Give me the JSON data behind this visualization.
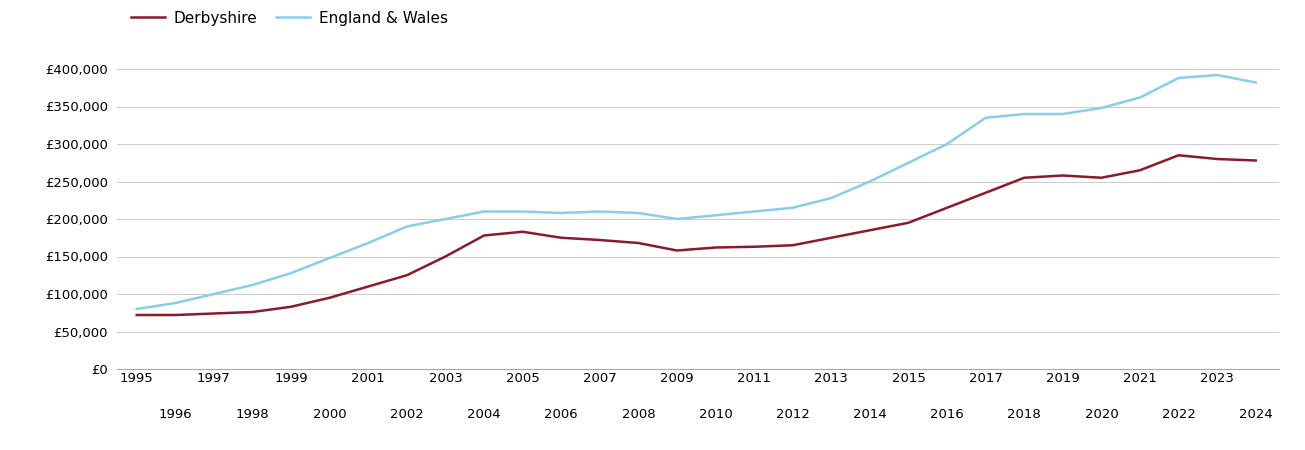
{
  "derbyshire": {
    "years": [
      1995,
      1996,
      1997,
      1998,
      1999,
      2000,
      2001,
      2002,
      2003,
      2004,
      2005,
      2006,
      2007,
      2008,
      2009,
      2010,
      2011,
      2012,
      2013,
      2014,
      2015,
      2016,
      2017,
      2018,
      2019,
      2020,
      2021,
      2022,
      2023,
      2024
    ],
    "values": [
      72000,
      72000,
      74000,
      76000,
      83000,
      95000,
      110000,
      125000,
      150000,
      178000,
      183000,
      175000,
      172000,
      168000,
      158000,
      162000,
      163000,
      165000,
      175000,
      185000,
      195000,
      215000,
      235000,
      255000,
      258000,
      255000,
      265000,
      285000,
      280000,
      278000
    ]
  },
  "england_wales": {
    "years": [
      1995,
      1996,
      1997,
      1998,
      1999,
      2000,
      2001,
      2002,
      2003,
      2004,
      2005,
      2006,
      2007,
      2008,
      2009,
      2010,
      2011,
      2012,
      2013,
      2014,
      2015,
      2016,
      2017,
      2018,
      2019,
      2020,
      2021,
      2022,
      2023,
      2024
    ],
    "values": [
      80000,
      88000,
      100000,
      112000,
      128000,
      148000,
      168000,
      190000,
      200000,
      210000,
      210000,
      208000,
      210000,
      208000,
      200000,
      205000,
      210000,
      215000,
      228000,
      250000,
      275000,
      300000,
      335000,
      340000,
      340000,
      348000,
      362000,
      388000,
      392000,
      382000
    ]
  },
  "derbyshire_color": "#8B1A2A",
  "england_wales_color": "#87CEEB",
  "background_color": "#ffffff",
  "grid_color": "#cccccc",
  "ylim": [
    0,
    420000
  ],
  "ytick_values": [
    0,
    50000,
    100000,
    150000,
    200000,
    250000,
    300000,
    350000,
    400000
  ],
  "xlim_start": 1994.5,
  "xlim_end": 2024.6,
  "odd_years": [
    1995,
    1997,
    1999,
    2001,
    2003,
    2005,
    2007,
    2009,
    2011,
    2013,
    2015,
    2017,
    2019,
    2021,
    2023
  ],
  "even_years": [
    1996,
    1998,
    2000,
    2002,
    2004,
    2006,
    2008,
    2010,
    2012,
    2014,
    2016,
    2018,
    2020,
    2022,
    2024
  ],
  "legend_labels": [
    "Derbyshire",
    "England & Wales"
  ],
  "line_width": 1.8,
  "tick_fontsize": 9.5,
  "legend_fontsize": 11
}
